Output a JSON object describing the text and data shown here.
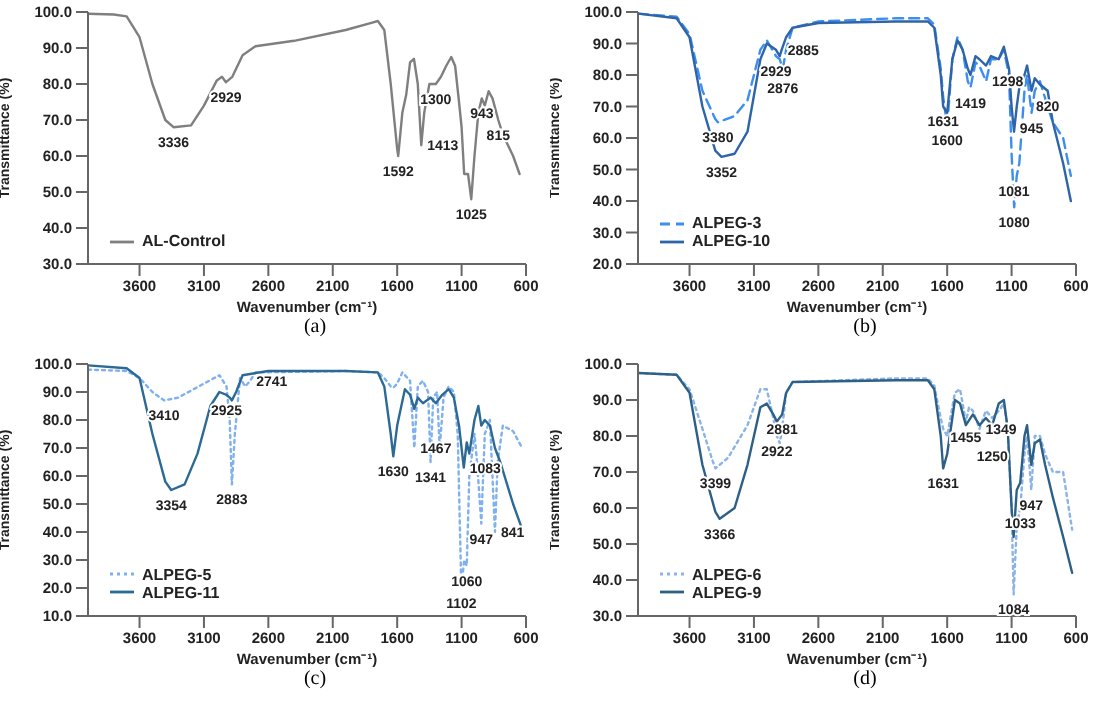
{
  "chart_data": [
    {
      "type": "line",
      "xlabel": "Wavenumber (cm⁻¹)",
      "ylabel": "Transmittance (%)",
      "xlim": [
        4000,
        600
      ],
      "xticks": [
        3600,
        3100,
        2600,
        2100,
        1600,
        1100,
        600
      ],
      "ylim": [
        30,
        100
      ],
      "yticks": [
        {
          "value": 30,
          "label": "30.0"
        },
        {
          "value": 40,
          "label": "40.0"
        },
        {
          "value": 50,
          "label": "50.0"
        },
        {
          "value": 60,
          "label": "60.0"
        },
        {
          "value": 70,
          "label": "70.0"
        },
        {
          "value": 80,
          "label": "80.0"
        },
        {
          "value": 90,
          "label": "90.0"
        },
        {
          "value": 100,
          "label": "100.0"
        }
      ],
      "grid": false,
      "legend": "bottom left",
      "marker": "none",
      "series": [
        {
          "name": "AL-Control",
          "color": "#7f7f7f",
          "line_style": "solid",
          "x": [
            4000,
            3800,
            3700,
            3600,
            3500,
            3400,
            3336,
            3200,
            3100,
            3000,
            2960,
            2929,
            2880,
            2800,
            2700,
            2400,
            2000,
            1800,
            1750,
            1700,
            1650,
            1600,
            1592,
            1560,
            1530,
            1500,
            1470,
            1440,
            1413,
            1390,
            1350,
            1300,
            1260,
            1220,
            1180,
            1150,
            1120,
            1100,
            1080,
            1050,
            1025,
            1000,
            970,
            943,
            920,
            890,
            860,
            815,
            780,
            700,
            650
          ],
          "values": [
            99.5,
            99.3,
            98.8,
            93,
            80,
            70,
            68,
            68.5,
            74,
            81,
            82,
            80.5,
            82,
            88,
            90.5,
            92,
            95,
            97,
            97.5,
            95,
            80,
            62,
            60,
            72,
            77,
            86,
            87,
            80,
            63,
            72,
            80,
            80,
            82,
            85,
            87.5,
            85,
            75,
            68,
            55,
            55,
            48,
            60,
            72,
            76,
            74,
            78,
            76,
            70,
            66,
            60,
            55
          ]
        }
      ],
      "annotations": [
        {
          "text": "3336",
          "x": 3336,
          "y": 68
        },
        {
          "text": "2929",
          "x": 2929,
          "y": 80.5
        },
        {
          "text": "1592",
          "x": 1592,
          "y": 60
        },
        {
          "text": "1413",
          "x": 1413,
          "y": 63
        },
        {
          "text": "1300",
          "x": 1300,
          "y": 80
        },
        {
          "text": "1025",
          "x": 1025,
          "y": 48
        },
        {
          "text": "943",
          "x": 943,
          "y": 76
        },
        {
          "text": "815",
          "x": 815,
          "y": 70
        },
        "(a)"
      ]
    },
    {
      "type": "line",
      "xlabel": "Wavenumber (cm⁻¹)",
      "ylabel": "Transmittance (%)",
      "xlim": [
        4000,
        600
      ],
      "xticks": [
        3600,
        3100,
        2600,
        2100,
        1600,
        1100,
        600
      ],
      "ylim": [
        20,
        100
      ],
      "yticks": [
        {
          "value": 20,
          "label": "20.0"
        },
        {
          "value": 30,
          "label": "30.0"
        },
        {
          "value": 40,
          "label": "40.0"
        },
        {
          "value": 50,
          "label": "50.0"
        },
        {
          "value": 60,
          "label": "60.0"
        },
        {
          "value": 70,
          "label": "70.0"
        },
        {
          "value": 80,
          "label": "80.0"
        },
        {
          "value": 90,
          "label": "90.0"
        },
        {
          "value": 100,
          "label": "100.0"
        }
      ],
      "grid": false,
      "legend": "bottom left",
      "marker": "none",
      "series": [
        {
          "name": "ALPEG-3",
          "color": "#3d8ef0",
          "line_style": "dashed",
          "x": [
            4000,
            3700,
            3600,
            3500,
            3400,
            3380,
            3250,
            3150,
            3050,
            3000,
            2929,
            2900,
            2876,
            2850,
            2800,
            2600,
            2000,
            1750,
            1700,
            1650,
            1631,
            1600,
            1560,
            1520,
            1480,
            1440,
            1419,
            1380,
            1350,
            1298,
            1260,
            1200,
            1160,
            1120,
            1100,
            1080,
            1060,
            1040,
            1000,
            980,
            945,
            920,
            880,
            820,
            780,
            700,
            640
          ],
          "values": [
            99.5,
            98.5,
            93,
            75,
            66,
            65,
            67,
            72,
            88,
            91,
            86,
            85,
            82,
            88,
            95,
            97,
            98,
            98,
            96,
            82,
            73,
            64,
            85,
            92,
            88,
            78,
            76,
            84,
            83,
            78,
            85,
            85,
            88,
            80,
            55,
            38,
            48,
            52,
            75,
            80,
            68,
            75,
            78,
            70,
            65,
            60,
            48
          ]
        },
        {
          "name": "ALPEG-10",
          "color": "#2e64a8",
          "line_style": "solid",
          "x": [
            4000,
            3700,
            3600,
            3500,
            3400,
            3352,
            3250,
            3150,
            3050,
            3000,
            2929,
            2900,
            2885,
            2850,
            2800,
            2600,
            2000,
            1750,
            1700,
            1650,
            1631,
            1600,
            1560,
            1520,
            1480,
            1440,
            1419,
            1380,
            1350,
            1298,
            1260,
            1200,
            1160,
            1120,
            1100,
            1081,
            1060,
            1040,
            1000,
            980,
            945,
            920,
            880,
            820,
            780,
            700,
            640
          ],
          "values": [
            99.5,
            98,
            92,
            70,
            56,
            54,
            55,
            62,
            85,
            90,
            88,
            86,
            88,
            92,
            95,
            96.5,
            97,
            97,
            95,
            80,
            70,
            68,
            85,
            91,
            88,
            82,
            80,
            86,
            85,
            83,
            86,
            85,
            89,
            82,
            70,
            62,
            70,
            76,
            80,
            83,
            75,
            79,
            77,
            75,
            65,
            52,
            40
          ]
        }
      ],
      "annotations": [
        {
          "text": "3380",
          "x": 3380,
          "y": 65
        },
        {
          "text": "3352",
          "x": 3352,
          "y": 54
        },
        {
          "text": "2929",
          "x": 2929,
          "y": 86
        },
        {
          "text": "2876",
          "x": 2876,
          "y": 82
        },
        {
          "text": "2885",
          "x": 2885,
          "y": 88
        },
        {
          "text": "1631",
          "x": 1631,
          "y": 70
        },
        {
          "text": "1600",
          "x": 1600,
          "y": 64
        },
        {
          "text": "1419",
          "x": 1419,
          "y": 76
        },
        {
          "text": "1298",
          "x": 1298,
          "y": 78
        },
        {
          "text": "1080",
          "x": 1080,
          "y": 38
        },
        {
          "text": "1081",
          "x": 1081,
          "y": 48
        },
        {
          "text": "945",
          "x": 945,
          "y": 68
        },
        {
          "text": "820",
          "x": 820,
          "y": 75
        },
        "(b)"
      ]
    },
    {
      "type": "line",
      "xlabel": "Wavenumber (cm⁻¹)",
      "ylabel": "Transmittance (%)",
      "xlim": [
        4000,
        600
      ],
      "xticks": [
        3600,
        3100,
        2600,
        2100,
        1600,
        1100,
        600
      ],
      "ylim": [
        10,
        100
      ],
      "yticks": [
        {
          "value": 10,
          "label": "10.0"
        },
        {
          "value": 20,
          "label": "20.0"
        },
        {
          "value": 30,
          "label": "30.0"
        },
        {
          "value": 40,
          "label": "40.0"
        },
        {
          "value": 50,
          "label": "50.0"
        },
        {
          "value": 60,
          "label": "60.0"
        },
        {
          "value": 70,
          "label": "70.0"
        },
        {
          "value": 80,
          "label": "80.0"
        },
        {
          "value": 90,
          "label": "90.0"
        },
        {
          "value": 100,
          "label": "100.0"
        }
      ],
      "grid": false,
      "legend": "bottom left",
      "marker": "none",
      "series": [
        {
          "name": "ALPEG-5",
          "color": "#7fb0f0",
          "line_style": "dotted",
          "x": [
            4000,
            3700,
            3600,
            3500,
            3410,
            3300,
            3100,
            2980,
            2925,
            2900,
            2883,
            2860,
            2820,
            2780,
            2741,
            2700,
            2000,
            1750,
            1700,
            1650,
            1630,
            1600,
            1560,
            1500,
            1467,
            1440,
            1400,
            1360,
            1341,
            1320,
            1290,
            1270,
            1240,
            1200,
            1160,
            1130,
            1102,
            1080,
            1060,
            1040,
            1000,
            980,
            947,
            920,
            880,
            841,
            820,
            780,
            700,
            630
          ],
          "values": [
            98,
            97.5,
            95,
            90,
            87,
            88,
            93,
            96,
            92,
            80,
            57,
            75,
            95,
            92,
            94,
            97,
            97.5,
            97,
            95,
            92,
            91.5,
            93,
            97,
            94,
            70,
            92,
            94,
            90,
            65,
            88,
            90,
            70,
            88,
            92,
            90,
            75,
            20,
            30,
            28,
            60,
            75,
            65,
            43,
            75,
            80,
            40,
            65,
            78,
            76,
            70
          ]
        },
        {
          "name": "ALPEG-11",
          "color": "#2c6a96",
          "line_style": "solid",
          "x": [
            4000,
            3700,
            3600,
            3500,
            3400,
            3354,
            3250,
            3150,
            3050,
            2980,
            2925,
            2900,
            2883,
            2850,
            2800,
            2600,
            2000,
            1750,
            1700,
            1650,
            1630,
            1600,
            1540,
            1500,
            1467,
            1440,
            1400,
            1341,
            1300,
            1250,
            1200,
            1160,
            1120,
            1083,
            1060,
            1040,
            1000,
            970,
            947,
            920,
            880,
            841,
            800,
            700,
            630
          ],
          "values": [
            99.5,
            98.5,
            95,
            75,
            58,
            55,
            57,
            68,
            85,
            90,
            89,
            88,
            87,
            90,
            96,
            97.5,
            97.5,
            97,
            92,
            75,
            67,
            78,
            91,
            89,
            84,
            88,
            86,
            88,
            86,
            89,
            91,
            88,
            78,
            63,
            72,
            68,
            80,
            85,
            78,
            80,
            78,
            70,
            65,
            50,
            41
          ]
        }
      ],
      "annotations": [
        {
          "text": "3410",
          "x": 3410,
          "y": 87
        },
        {
          "text": "3354",
          "x": 3354,
          "y": 55
        },
        {
          "text": "2925",
          "x": 2925,
          "y": 89
        },
        {
          "text": "2883",
          "x": 2883,
          "y": 57
        },
        {
          "text": "2741",
          "x": 2741,
          "y": 94
        },
        {
          "text": "1630",
          "x": 1630,
          "y": 67
        },
        {
          "text": "1467",
          "x": 1467,
          "y": 70
        },
        {
          "text": "1341",
          "x": 1341,
          "y": 65
        },
        {
          "text": "1083",
          "x": 1083,
          "y": 63
        },
        {
          "text": "947",
          "x": 947,
          "y": 43
        },
        {
          "text": "841",
          "x": 841,
          "y": 40
        },
        {
          "text": "1060",
          "x": 1060,
          "y": 28
        },
        {
          "text": "1102",
          "x": 1102,
          "y": 20
        },
        "(c)"
      ]
    },
    {
      "type": "line",
      "xlabel": "Wavenumber (cm⁻¹)",
      "ylabel": "Transmittance (%)",
      "xlim": [
        4000,
        600
      ],
      "xticks": [
        3600,
        3100,
        2600,
        2100,
        1600,
        1100,
        600
      ],
      "ylim": [
        30,
        100
      ],
      "yticks": [
        {
          "value": 30,
          "label": "30.0"
        },
        {
          "value": 40,
          "label": "40.0"
        },
        {
          "value": 50,
          "label": "50.0"
        },
        {
          "value": 60,
          "label": "60.0"
        },
        {
          "value": 70,
          "label": "70.0"
        },
        {
          "value": 80,
          "label": "80.0"
        },
        {
          "value": 90,
          "label": "90.0"
        },
        {
          "value": 100,
          "label": "100.0"
        }
      ],
      "grid": false,
      "legend": "bottom left",
      "marker": "none",
      "series": [
        {
          "name": "ALPEG-6",
          "color": "#8cb3e6",
          "line_style": "dotted",
          "x": [
            4000,
            3700,
            3600,
            3500,
            3420,
            3399,
            3300,
            3150,
            3050,
            3000,
            2950,
            2922,
            2900,
            2881,
            2850,
            2800,
            2000,
            1750,
            1700,
            1650,
            1631,
            1600,
            1540,
            1500,
            1455,
            1430,
            1400,
            1349,
            1300,
            1250,
            1200,
            1160,
            1130,
            1100,
            1084,
            1060,
            1033,
            1000,
            980,
            947,
            920,
            880,
            840,
            780,
            700,
            630
          ],
          "values": [
            97.5,
            97,
            93,
            82,
            73,
            71,
            74,
            83,
            93,
            93,
            85,
            80,
            78,
            82,
            92,
            95,
            96,
            96,
            94,
            85,
            82,
            80,
            92,
            93,
            84,
            88,
            87,
            82,
            87,
            85,
            87,
            89,
            82,
            60,
            36,
            55,
            60,
            75,
            80,
            65,
            80,
            80,
            75,
            70,
            70,
            54
          ]
        },
        {
          "name": "ALPEG-9",
          "color": "#2d6088",
          "line_style": "solid",
          "x": [
            4000,
            3700,
            3600,
            3500,
            3400,
            3366,
            3250,
            3150,
            3050,
            3000,
            2950,
            2922,
            2881,
            2850,
            2800,
            2000,
            1750,
            1700,
            1650,
            1631,
            1600,
            1540,
            1500,
            1455,
            1400,
            1349,
            1300,
            1250,
            1200,
            1160,
            1130,
            1100,
            1084,
            1060,
            1033,
            1000,
            980,
            947,
            920,
            880,
            840,
            780,
            700,
            630
          ],
          "values": [
            97.5,
            97,
            92,
            72,
            59,
            57,
            60,
            72,
            88,
            89,
            86,
            84,
            86,
            92,
            95,
            95.5,
            95.5,
            93,
            80,
            71,
            75,
            90,
            89,
            83,
            86,
            83,
            85,
            83,
            89,
            90,
            82,
            60,
            52,
            65,
            67,
            80,
            83,
            72,
            78,
            79,
            72,
            63,
            52,
            42
          ]
        }
      ],
      "annotations": [
        {
          "text": "3399",
          "x": 3399,
          "y": 71
        },
        {
          "text": "3366",
          "x": 3366,
          "y": 57
        },
        {
          "text": "2922",
          "x": 2922,
          "y": 80
        },
        {
          "text": "2881",
          "x": 2881,
          "y": 86
        },
        {
          "text": "1631",
          "x": 1631,
          "y": 71
        },
        {
          "text": "1455",
          "x": 1455,
          "y": 84
        },
        {
          "text": "1349",
          "x": 1349,
          "y": 82
        },
        {
          "text": "1250",
          "x": 1250,
          "y": 83
        },
        {
          "text": "947",
          "x": 947,
          "y": 65
        },
        {
          "text": "1033",
          "x": 1033,
          "y": 60
        },
        {
          "text": "1084",
          "x": 1084,
          "y": 36
        },
        "(d)"
      ]
    }
  ]
}
